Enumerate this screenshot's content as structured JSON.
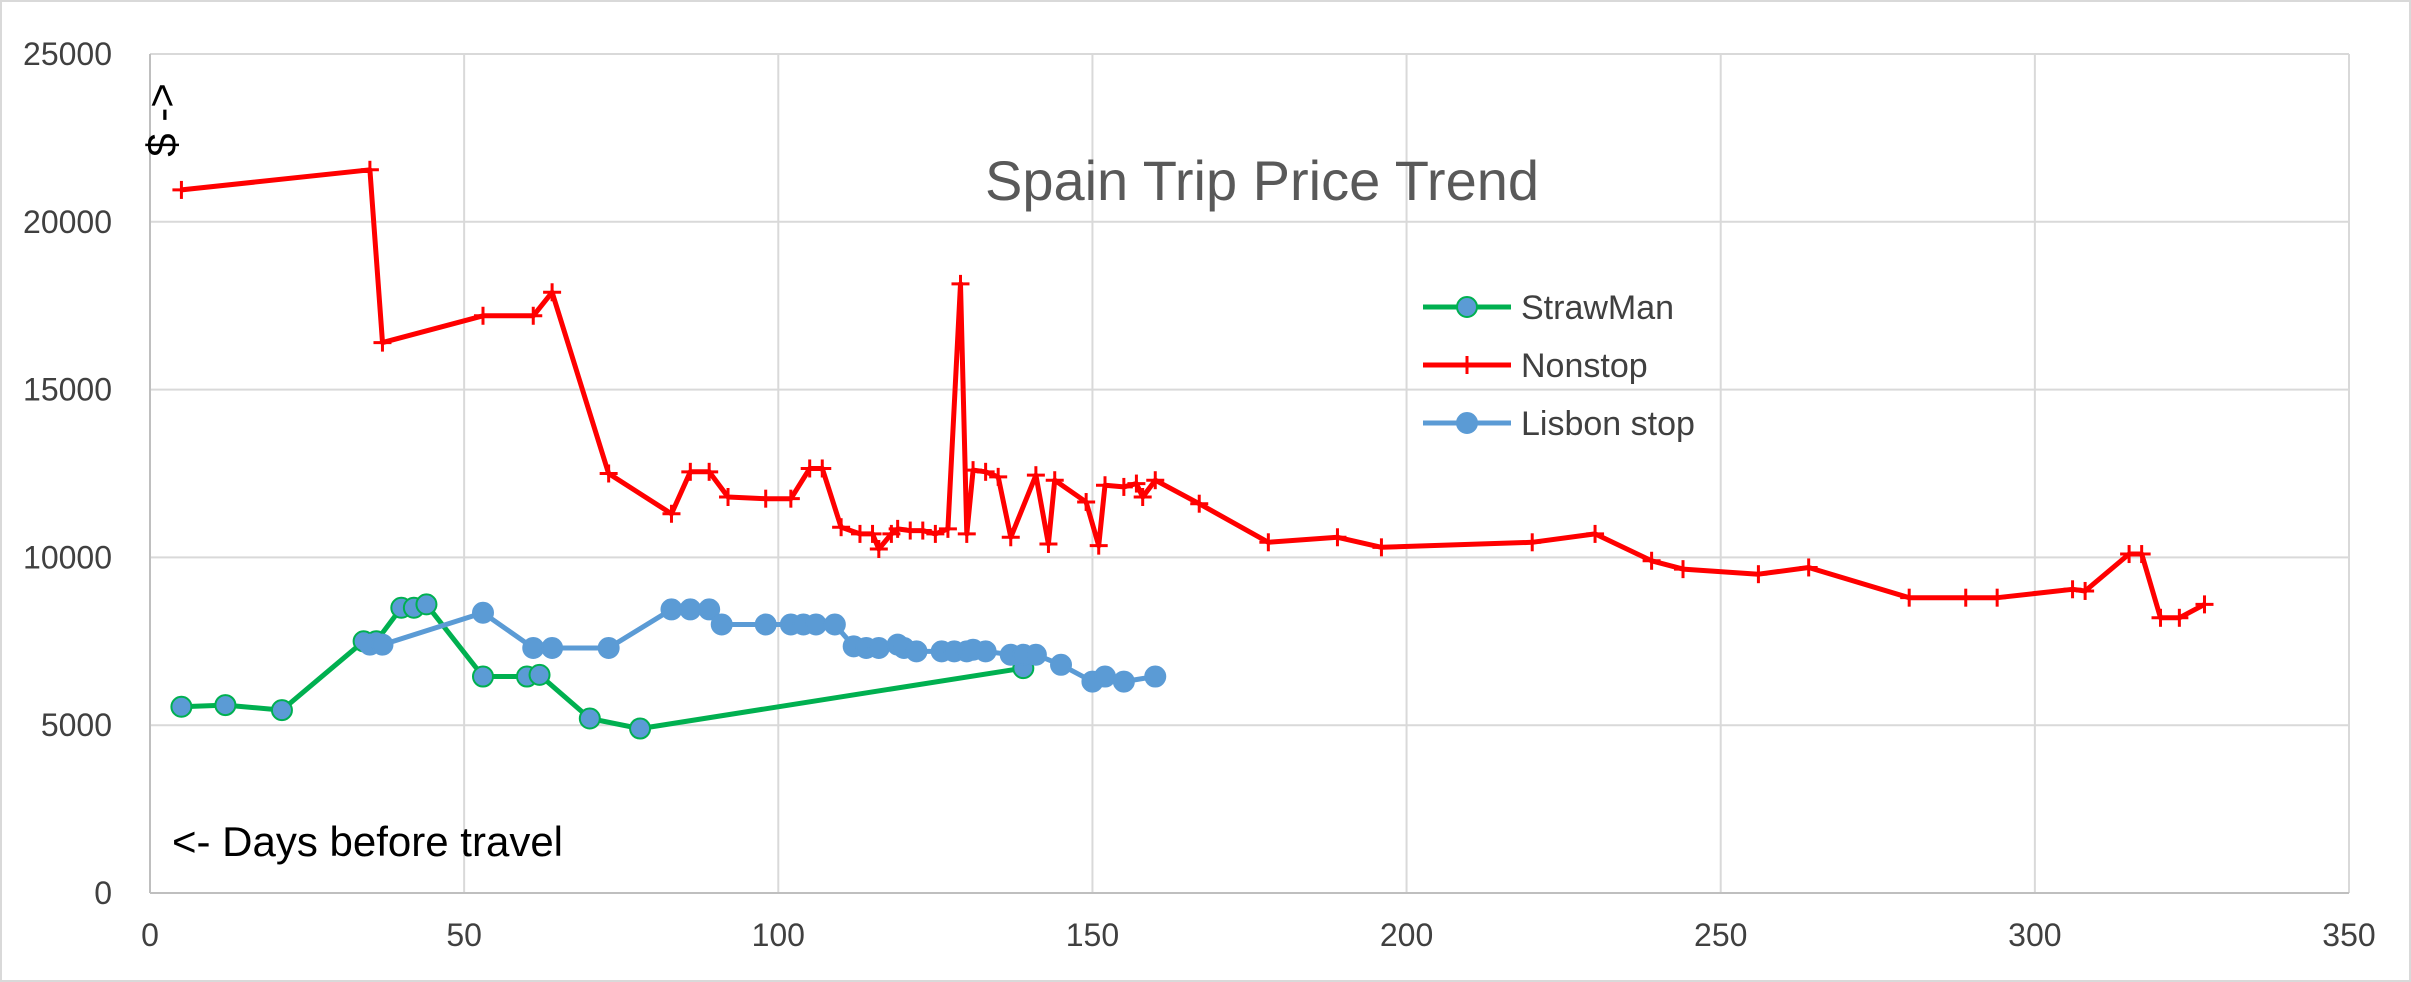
{
  "chart_data": {
    "type": "line",
    "title": "Spain Trip Price Trend",
    "xlabel": "",
    "ylabel": "$ ->",
    "annotation": "<- Days before travel",
    "xlim": [
      0,
      350
    ],
    "ylim": [
      0,
      25000
    ],
    "x_ticks": [
      0,
      50,
      100,
      150,
      200,
      250,
      300,
      350
    ],
    "y_ticks": [
      0,
      5000,
      10000,
      15000,
      20000,
      25000
    ],
    "grid": true,
    "legend_position": "top-center",
    "series": [
      {
        "name": "StrawMan",
        "color": "#00b050",
        "marker": "circle",
        "points": [
          [
            5,
            5550
          ],
          [
            12,
            5600
          ],
          [
            21,
            5450
          ],
          [
            34,
            7500
          ],
          [
            36,
            7500
          ],
          [
            40,
            8500
          ],
          [
            42,
            8500
          ],
          [
            44,
            8600
          ],
          [
            53,
            6450
          ],
          [
            60,
            6450
          ],
          [
            62,
            6500
          ],
          [
            70,
            5200
          ],
          [
            78,
            4900
          ],
          [
            139,
            6700
          ]
        ]
      },
      {
        "name": "Nonstop",
        "color": "#ff0000",
        "marker": "plus",
        "points": [
          [
            5,
            20950
          ],
          [
            35,
            21550
          ],
          [
            37,
            16400
          ],
          [
            53,
            17200
          ],
          [
            61,
            17200
          ],
          [
            64,
            17900
          ],
          [
            73,
            12500
          ],
          [
            83,
            11300
          ],
          [
            86,
            12550
          ],
          [
            89,
            12550
          ],
          [
            92,
            11800
          ],
          [
            98,
            11750
          ],
          [
            102,
            11750
          ],
          [
            105,
            12650
          ],
          [
            107,
            12650
          ],
          [
            110,
            10900
          ],
          [
            113,
            10700
          ],
          [
            115,
            10700
          ],
          [
            116,
            10250
          ],
          [
            118,
            10700
          ],
          [
            119,
            10850
          ],
          [
            121,
            10800
          ],
          [
            123,
            10800
          ],
          [
            125,
            10700
          ],
          [
            127,
            10850
          ],
          [
            129,
            18150
          ],
          [
            130,
            10700
          ],
          [
            131,
            12600
          ],
          [
            133,
            12550
          ],
          [
            135,
            12400
          ],
          [
            137,
            10600
          ],
          [
            141,
            12450
          ],
          [
            143,
            10400
          ],
          [
            144,
            12300
          ],
          [
            149,
            11650
          ],
          [
            151,
            10350
          ],
          [
            152,
            12150
          ],
          [
            155,
            12100
          ],
          [
            157,
            12200
          ],
          [
            158,
            11800
          ],
          [
            160,
            12300
          ],
          [
            167,
            11600
          ],
          [
            178,
            10450
          ],
          [
            189,
            10600
          ],
          [
            196,
            10300
          ],
          [
            220,
            10450
          ],
          [
            230,
            10700
          ],
          [
            239,
            9900
          ],
          [
            244,
            9650
          ],
          [
            256,
            9500
          ],
          [
            264,
            9700
          ],
          [
            280,
            8800
          ],
          [
            289,
            8800
          ],
          [
            294,
            8800
          ],
          [
            306,
            9050
          ],
          [
            308,
            9000
          ],
          [
            315,
            10100
          ],
          [
            317,
            10100
          ],
          [
            320,
            8200
          ],
          [
            323,
            8200
          ],
          [
            327,
            8600
          ]
        ]
      },
      {
        "name": "Lisbon stop",
        "color": "#5b9bd5",
        "marker": "circle",
        "points": [
          [
            35,
            7400
          ],
          [
            37,
            7400
          ],
          [
            53,
            8350
          ],
          [
            61,
            7300
          ],
          [
            64,
            7300
          ],
          [
            73,
            7300
          ],
          [
            83,
            8450
          ],
          [
            86,
            8450
          ],
          [
            89,
            8450
          ],
          [
            91,
            8000
          ],
          [
            98,
            8000
          ],
          [
            102,
            8000
          ],
          [
            104,
            8000
          ],
          [
            106,
            8000
          ],
          [
            109,
            8000
          ],
          [
            112,
            7350
          ],
          [
            114,
            7300
          ],
          [
            116,
            7300
          ],
          [
            119,
            7400
          ],
          [
            120,
            7300
          ],
          [
            122,
            7200
          ],
          [
            126,
            7200
          ],
          [
            128,
            7200
          ],
          [
            130,
            7200
          ],
          [
            131,
            7250
          ],
          [
            133,
            7200
          ],
          [
            137,
            7100
          ],
          [
            139,
            7100
          ],
          [
            141,
            7100
          ],
          [
            145,
            6800
          ],
          [
            150,
            6300
          ],
          [
            152,
            6450
          ],
          [
            155,
            6300
          ],
          [
            160,
            6450
          ]
        ]
      }
    ]
  }
}
